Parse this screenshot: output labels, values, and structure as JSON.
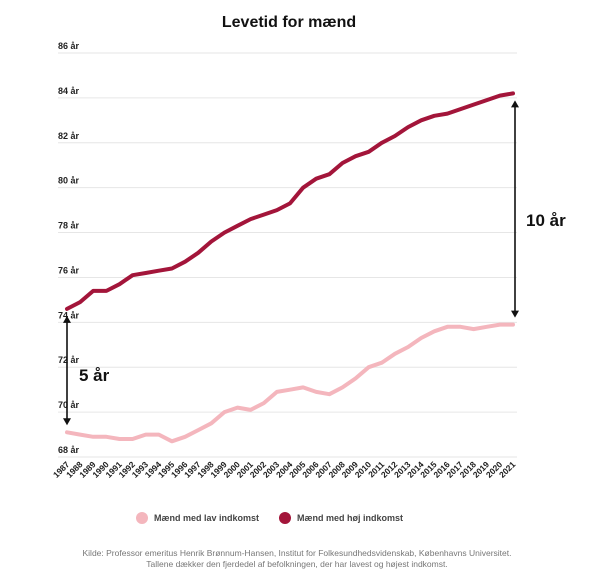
{
  "chart_data": {
    "type": "line",
    "title": "Levetid for mænd",
    "xlabel": "",
    "ylabel": "",
    "x": [
      1987,
      1988,
      1989,
      1990,
      1991,
      1992,
      1993,
      1994,
      1995,
      1996,
      1997,
      1998,
      1999,
      2000,
      2001,
      2002,
      2003,
      2004,
      2005,
      2006,
      2007,
      2008,
      2009,
      2010,
      2011,
      2012,
      2013,
      2014,
      2015,
      2016,
      2017,
      2018,
      2019,
      2020,
      2021
    ],
    "xlim": [
      1987,
      2021
    ],
    "ylim": [
      68,
      86
    ],
    "yticks": [
      68,
      70,
      72,
      74,
      76,
      78,
      80,
      82,
      84,
      86
    ],
    "ytick_suffix": " år",
    "grid": true,
    "legend_position": "bottom",
    "series": [
      {
        "name": "Mænd med lav indkomst",
        "color": "#f4b6bd",
        "values": [
          69.1,
          69.0,
          68.9,
          68.9,
          68.8,
          68.8,
          69.0,
          69.0,
          68.7,
          68.9,
          69.2,
          69.5,
          70.0,
          70.2,
          70.1,
          70.4,
          70.9,
          71.0,
          71.1,
          70.9,
          70.8,
          71.1,
          71.5,
          72.0,
          72.2,
          72.6,
          72.9,
          73.3,
          73.6,
          73.8,
          73.8,
          73.7,
          73.8,
          73.9,
          73.9
        ]
      },
      {
        "name": "Mænd med høj indkomst",
        "color": "#a3153a",
        "values": [
          74.6,
          74.9,
          75.4,
          75.4,
          75.7,
          76.1,
          76.2,
          76.3,
          76.4,
          76.7,
          77.1,
          77.6,
          78.0,
          78.3,
          78.6,
          78.8,
          79.0,
          79.3,
          80.0,
          80.4,
          80.6,
          81.1,
          81.4,
          81.6,
          82.0,
          82.3,
          82.7,
          83.0,
          83.2,
          83.3,
          83.5,
          83.7,
          83.9,
          84.1,
          84.2
        ]
      }
    ],
    "annotations": [
      {
        "label": "5 år",
        "x": 1987,
        "y_from": 69.1,
        "y_to": 74.6
      },
      {
        "label": "10 år",
        "x": 2021,
        "y_from": 73.9,
        "y_to": 84.2
      }
    ]
  },
  "source_lines": [
    "Kilde: Professor emeritus Henrik Brønnum-Hansen, Institut for Folkesundhedsvidenskab, Københavns Universitet.",
    "Tallene dækker den fjerdedel af befolkningen, der har lavest og højest indkomst."
  ]
}
